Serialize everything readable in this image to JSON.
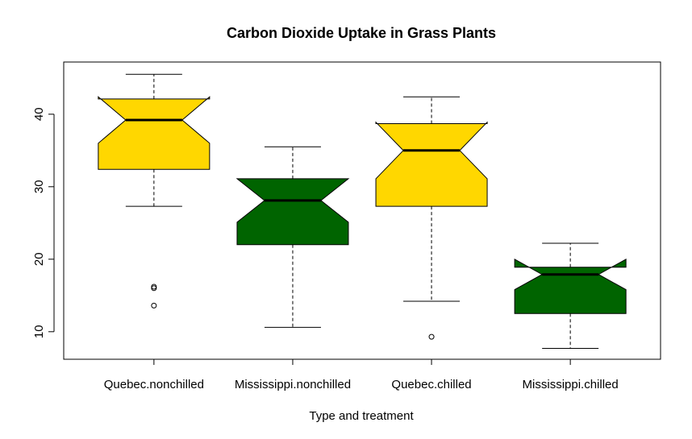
{
  "chart_data": {
    "type": "boxplot",
    "title": "Carbon Dioxide Uptake in Grass Plants",
    "xlabel": "Type and treatment",
    "ylabel": "",
    "notched": true,
    "ylim": [
      6.2,
      47.2
    ],
    "yticks": [
      10,
      20,
      30,
      40
    ],
    "categories": [
      "Quebec.nonchilled",
      "Mississippi.nonchilled",
      "Quebec.chilled",
      "Mississippi.chilled"
    ],
    "boxes": [
      {
        "whisker_low": 27.3,
        "q1": 32.4,
        "median": 39.2,
        "q3": 42.1,
        "whisker_high": 45.5,
        "notch_low": 36.0,
        "notch_high": 42.4,
        "outliers": [
          16.0,
          16.2,
          13.6
        ],
        "color": "#FFD700"
      },
      {
        "whisker_low": 10.6,
        "q1": 22.0,
        "median": 28.1,
        "q3": 31.1,
        "whisker_high": 35.5,
        "notch_low": 25.1,
        "notch_high": 31.1,
        "outliers": [],
        "color": "#006400"
      },
      {
        "whisker_low": 14.2,
        "q1": 27.3,
        "median": 35.0,
        "q3": 38.7,
        "whisker_high": 42.4,
        "notch_low": 31.1,
        "notch_high": 38.9,
        "outliers": [
          9.3
        ],
        "color": "#FFD700"
      },
      {
        "whisker_low": 7.7,
        "q1": 12.5,
        "median": 17.9,
        "q3": 18.9,
        "whisker_high": 22.2,
        "notch_low": 15.8,
        "notch_high": 20.0,
        "outliers": [],
        "color": "#006400"
      }
    ]
  }
}
